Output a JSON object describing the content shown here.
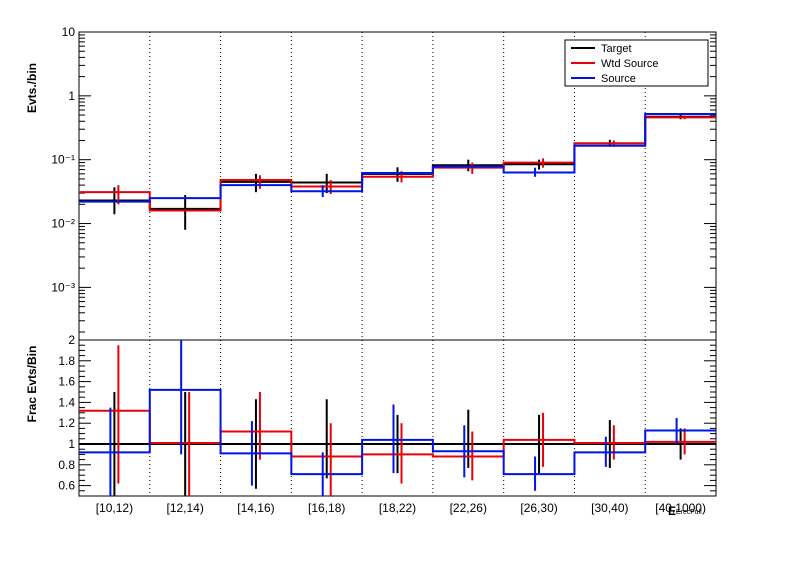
{
  "chart_data": [
    {
      "type": "step-histogram",
      "panel": "top",
      "ylabel": "Evts./bin",
      "yscale": "log",
      "ylim": [
        0.00015,
        10
      ],
      "y_ticks": [
        {
          "value": 10,
          "label": "10"
        },
        {
          "value": 1,
          "label": "1"
        },
        {
          "value": 0.1,
          "label": "10⁻¹"
        },
        {
          "value": 0.01,
          "label": "10⁻²"
        },
        {
          "value": 0.001,
          "label": "10⁻³"
        }
      ],
      "categories": [
        "[10,12)",
        "[12,14)",
        "[14,16)",
        "[16,18)",
        "[18,22)",
        "[22,26)",
        "[26,30)",
        "[30,40)",
        "[40,1000)"
      ],
      "legend": {
        "position": "top-right",
        "entries": [
          {
            "label": "Target",
            "color": "#000000"
          },
          {
            "label": "Wtd Source",
            "color": "#e8000b"
          },
          {
            "label": "Source",
            "color": "#0014e6"
          }
        ]
      },
      "series": [
        {
          "name": "Target",
          "color": "#000000",
          "values": [
            0.023,
            0.017,
            0.045,
            0.044,
            0.06,
            0.082,
            0.085,
            0.18,
            0.47
          ],
          "err_low": [
            0.014,
            0.008,
            0.031,
            0.03,
            0.045,
            0.066,
            0.07,
            0.16,
            0.43
          ],
          "err_high": [
            0.037,
            0.028,
            0.06,
            0.06,
            0.076,
            0.1,
            0.1,
            0.205,
            0.51
          ]
        },
        {
          "name": "Wtd Source",
          "color": "#e8000b",
          "values": [
            0.031,
            0.016,
            0.048,
            0.038,
            0.054,
            0.075,
            0.09,
            0.18,
            0.46
          ],
          "err_low": [
            0.02,
            0.0,
            0.035,
            0.029,
            0.044,
            0.06,
            0.075,
            0.16,
            0.43
          ],
          "err_high": [
            0.04,
            0.0,
            0.057,
            0.048,
            0.066,
            0.09,
            0.105,
            0.2,
            0.49
          ]
        },
        {
          "name": "Source",
          "color": "#0014e6",
          "values": [
            0.022,
            0.025,
            0.04,
            0.032,
            0.062,
            0.078,
            0.063,
            0.165,
            0.52
          ],
          "err_low": [
            0.0,
            0.0,
            0.0,
            0.026,
            0.0,
            0.0,
            0.054,
            0.0,
            0.0
          ],
          "err_high": [
            0.0,
            0.0,
            0.0,
            0.04,
            0.0,
            0.0,
            0.075,
            0.0,
            0.0
          ]
        }
      ]
    },
    {
      "type": "step-histogram",
      "panel": "bottom",
      "ylabel": "Frac Evts/Bin",
      "xlabel": "E",
      "xlabel_sub": "ErecFull",
      "ylim": [
        0.5,
        2.0
      ],
      "y_ticks": [
        {
          "value": 0.6,
          "label": "0.6"
        },
        {
          "value": 0.8,
          "label": "0.8"
        },
        {
          "value": 1.0,
          "label": "1"
        },
        {
          "value": 1.2,
          "label": "1.2"
        },
        {
          "value": 1.4,
          "label": "1.4"
        },
        {
          "value": 1.6,
          "label": "1.6"
        },
        {
          "value": 1.8,
          "label": "1.8"
        },
        {
          "value": 2.0,
          "label": "2"
        }
      ],
      "categories": [
        "[10,12)",
        "[12,14)",
        "[14,16)",
        "[16,18)",
        "[18,22)",
        "[22,26)",
        "[26,30)",
        "[30,40)",
        "[40,1000)"
      ],
      "series": [
        {
          "name": "Target",
          "color": "#000000",
          "values": [
            1.0,
            1.0,
            1.0,
            1.0,
            1.0,
            1.0,
            1.0,
            1.0,
            1.0
          ],
          "err_low": [
            0.5,
            0.5,
            0.57,
            0.67,
            0.72,
            0.77,
            0.72,
            0.77,
            0.85
          ],
          "err_high": [
            1.5,
            1.5,
            1.43,
            1.43,
            1.28,
            1.33,
            1.28,
            1.23,
            1.15
          ]
        },
        {
          "name": "Wtd Source",
          "color": "#e8000b",
          "values": [
            1.32,
            1.01,
            1.12,
            0.88,
            0.9,
            0.88,
            1.04,
            1.01,
            1.02
          ],
          "err_low": [
            0.62,
            0.5,
            0.85,
            0.5,
            0.62,
            0.65,
            0.78,
            0.85,
            0.9
          ],
          "err_high": [
            1.95,
            1.5,
            1.5,
            1.2,
            1.2,
            1.12,
            1.3,
            1.18,
            1.15
          ]
        },
        {
          "name": "Source",
          "color": "#0014e6",
          "values": [
            0.92,
            1.52,
            0.91,
            0.71,
            1.04,
            0.93,
            0.71,
            0.92,
            1.13
          ],
          "err_low": [
            0.5,
            0.9,
            0.6,
            0.5,
            0.72,
            0.68,
            0.55,
            0.78,
            1.0
          ],
          "err_high": [
            1.35,
            2.0,
            1.22,
            0.92,
            1.38,
            1.18,
            0.88,
            1.07,
            1.25
          ]
        }
      ]
    }
  ]
}
